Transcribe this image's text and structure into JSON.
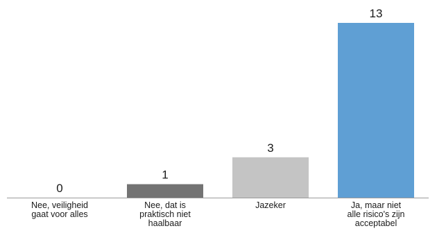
{
  "chart_data": {
    "type": "bar",
    "title": "",
    "xlabel": "",
    "ylabel": "",
    "categories": [
      [
        "Nee, veiligheid",
        "gaat voor alles"
      ],
      [
        "Nee, dat is",
        "praktisch niet",
        "haalbaar"
      ],
      [
        "Jazeker"
      ],
      [
        "Ja, maar niet",
        "alle risico's zijn",
        "acceptabel"
      ]
    ],
    "values": [
      0,
      1,
      3,
      13
    ],
    "value_labels": [
      "0",
      "1",
      "3",
      "13"
    ],
    "colors": [
      "#5a5a5a",
      "#737373",
      "#c4c4c4",
      "#5f9fd4"
    ],
    "ylim": [
      0,
      13
    ],
    "grid": false,
    "legend": "none",
    "axis_color": "#9a9a9a"
  }
}
